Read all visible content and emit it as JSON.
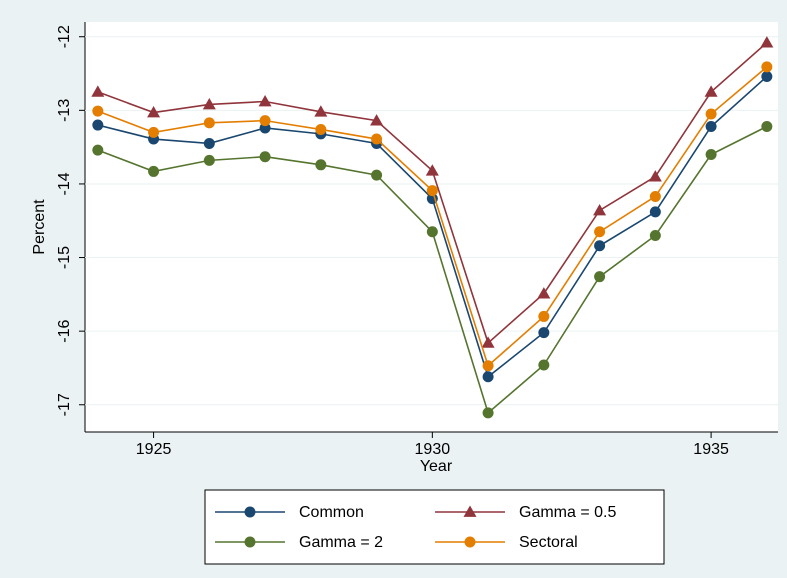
{
  "chart_data": {
    "type": "line",
    "x_label": "Year",
    "y_label": "Percent",
    "x": [
      1924,
      1925,
      1926,
      1927,
      1928,
      1929,
      1930,
      1931,
      1932,
      1933,
      1934,
      1935,
      1936
    ],
    "series": [
      {
        "name": "Common",
        "color": "#1a476f",
        "marker": "circle",
        "values": [
          -13.2,
          -13.39,
          -13.45,
          -13.24,
          -13.32,
          -13.45,
          -14.2,
          -16.62,
          -16.02,
          -14.84,
          -14.38,
          -13.22,
          -12.54
        ]
      },
      {
        "name": "Gamma = 0.5",
        "color": "#90353b",
        "marker": "triangle",
        "values": [
          -12.75,
          -13.03,
          -12.92,
          -12.88,
          -13.02,
          -13.14,
          -13.82,
          -16.16,
          -15.49,
          -14.36,
          -13.9,
          -12.75,
          -12.08
        ]
      },
      {
        "name": "Gamma = 2",
        "color": "#55752f",
        "marker": "circle",
        "values": [
          -13.54,
          -13.83,
          -13.68,
          -13.63,
          -13.74,
          -13.88,
          -14.65,
          -17.11,
          -16.46,
          -15.26,
          -14.7,
          -13.6,
          -13.22
        ]
      },
      {
        "name": "Sectoral",
        "color": "#e37e00",
        "marker": "circle",
        "values": [
          -13.01,
          -13.3,
          -13.17,
          -13.14,
          -13.26,
          -13.39,
          -14.09,
          -16.47,
          -15.8,
          -14.65,
          -14.17,
          -13.05,
          -12.41
        ]
      }
    ],
    "xlim": [
      1923.77,
      1936.2
    ],
    "xticks": [
      1925,
      1930,
      1935
    ],
    "ylim": [
      -17.37,
      -11.8
    ],
    "yticks": [
      -17,
      -16,
      -15,
      -14,
      -13,
      -12
    ],
    "grid": true
  }
}
